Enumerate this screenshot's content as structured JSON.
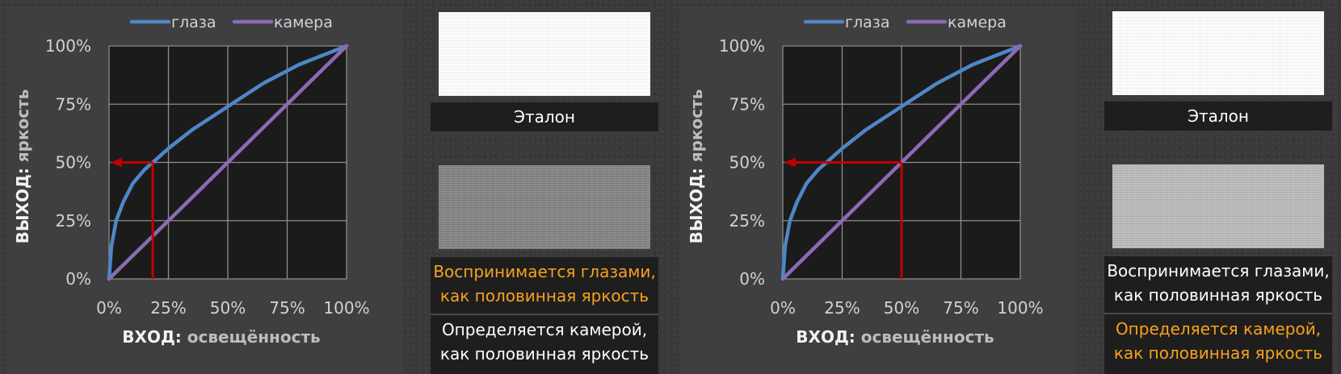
{
  "colors": {
    "eye_curve": "#4f86c6",
    "camera_curve": "#8b6bb3",
    "marker": "#c00000",
    "highlight_text": "#f7a21c",
    "normal_text": "#ffffff"
  },
  "chart_data": [
    {
      "type": "line",
      "legend": [
        "глаза",
        "камера"
      ],
      "legend_position": "top",
      "xlabel_bold": "ВХОД:",
      "xlabel_rest": "освещённость",
      "ylabel_bold": "ВЫХОД:",
      "ylabel_rest": "яркость",
      "x_ticks": [
        "0%",
        "25%",
        "50%",
        "75%",
        "100%"
      ],
      "y_ticks": [
        "0%",
        "25%",
        "50%",
        "75%",
        "100%"
      ],
      "xlim": [
        0,
        100
      ],
      "ylim": [
        0,
        100
      ],
      "grid": true,
      "series": [
        {
          "name": "глаза",
          "x": [
            0,
            1,
            3,
            6,
            10,
            15,
            18.4,
            25,
            35,
            50,
            65,
            80,
            100
          ],
          "y": [
            0,
            14,
            25,
            33,
            41,
            47,
            50,
            56,
            64,
            74,
            84,
            92,
            100
          ]
        },
        {
          "name": "камера",
          "x": [
            0,
            100
          ],
          "y": [
            0,
            100
          ]
        }
      ],
      "marker": {
        "input": 18.4,
        "output": 50
      }
    },
    {
      "type": "line",
      "legend": [
        "глаза",
        "камера"
      ],
      "legend_position": "top",
      "xlabel_bold": "ВХОД:",
      "xlabel_rest": "освещённость",
      "ylabel_bold": "ВЫХОД:",
      "ylabel_rest": "яркость",
      "x_ticks": [
        "0%",
        "25%",
        "50%",
        "75%",
        "100%"
      ],
      "y_ticks": [
        "0%",
        "25%",
        "50%",
        "75%",
        "100%"
      ],
      "xlim": [
        0,
        100
      ],
      "ylim": [
        0,
        100
      ],
      "grid": true,
      "series": [
        {
          "name": "глаза",
          "x": [
            0,
            1,
            3,
            6,
            10,
            15,
            18.4,
            25,
            35,
            50,
            65,
            80,
            100
          ],
          "y": [
            0,
            14,
            25,
            33,
            41,
            47,
            50,
            56,
            64,
            74,
            84,
            92,
            100
          ]
        },
        {
          "name": "камера",
          "x": [
            0,
            100
          ],
          "y": [
            0,
            100
          ]
        }
      ],
      "marker": {
        "input": 50,
        "output": 50
      }
    }
  ],
  "panels": [
    {
      "reference_label": "Эталон",
      "perceived_lines": [
        "Воспринимается глазами,",
        "как половинная яркость"
      ],
      "measured_lines": [
        "Определяется камерой,",
        "как половинная яркость"
      ],
      "highlighted": "perceived"
    },
    {
      "reference_label": "Эталон",
      "perceived_lines": [
        "Воспринимается глазами,",
        "как половинная яркость"
      ],
      "measured_lines": [
        "Определяется камерой,",
        "как половинная яркость"
      ],
      "highlighted": "measured"
    }
  ]
}
